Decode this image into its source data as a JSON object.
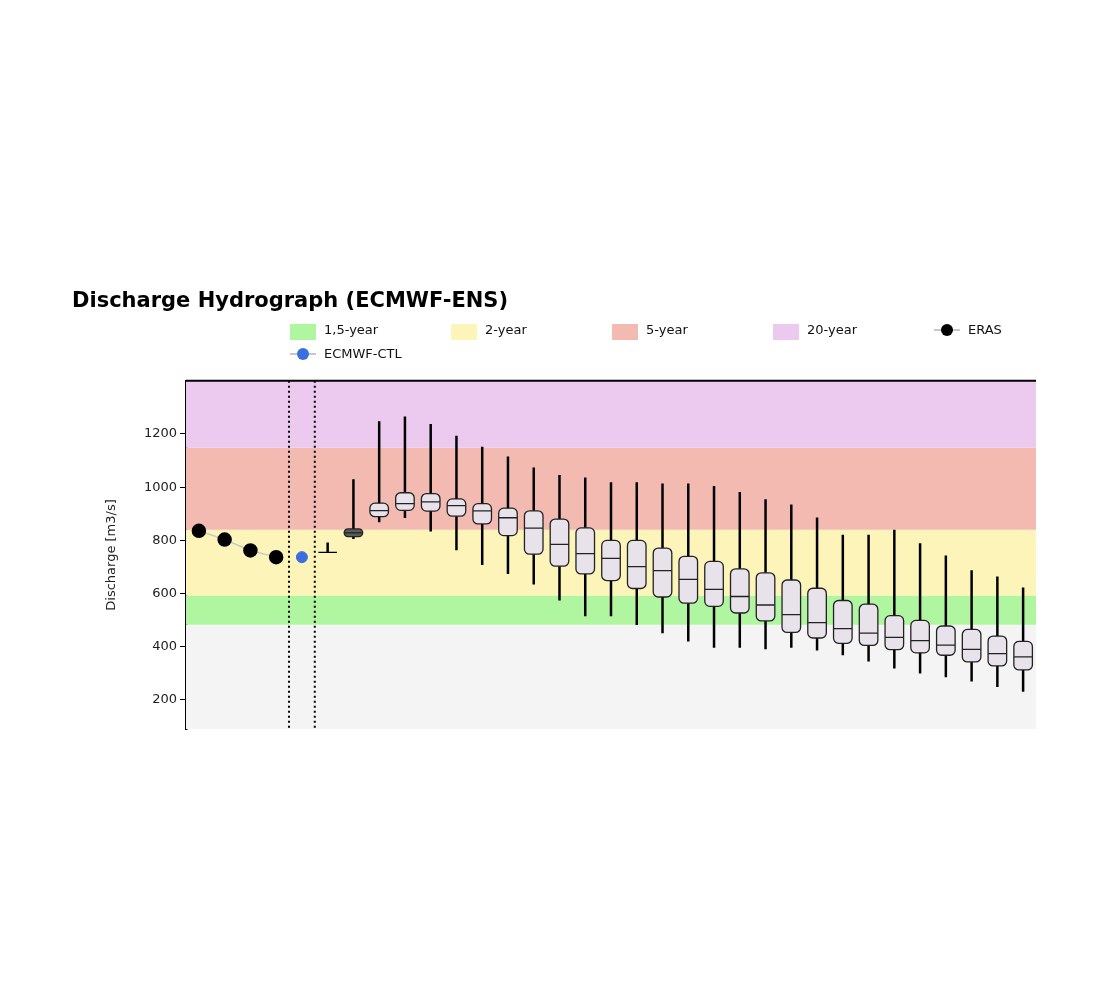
{
  "chart_data": {
    "type": "box",
    "title": "Discharge Hydrograph (ECMWF-ENS)",
    "ylabel": "Discharge [m3/s]",
    "categories": [
      null,
      null,
      null,
      null,
      null,
      null,
      null,
      null,
      null,
      null,
      null,
      null,
      null,
      null,
      null,
      null,
      null,
      null,
      null,
      null,
      null,
      null,
      null,
      null,
      null,
      null,
      null,
      null,
      null,
      null,
      null,
      null,
      null
    ],
    "ylim": [
      90,
      1400
    ],
    "yticks": [
      200,
      400,
      600,
      800,
      1000,
      1200
    ],
    "tick_labels": "y",
    "legend": "top",
    "bands": [
      {
        "axis": "y",
        "from": 90,
        "to": 483,
        "color": "#f4f4f4"
      },
      {
        "axis": "y",
        "from": 483,
        "to": 593,
        "label": "1,5-year",
        "color": "#b0f5a0"
      },
      {
        "axis": "y",
        "from": 593,
        "to": 840,
        "label": "2-year",
        "color": "#fcf4b8"
      },
      {
        "axis": "y",
        "from": 840,
        "to": 1148,
        "label": "5-year",
        "color": "#f3bab2"
      },
      {
        "axis": "y",
        "from": 1148,
        "to": 1400,
        "label": "20-year",
        "color": "#eccaf0"
      }
    ],
    "series": [
      {
        "name": "ERAS",
        "type": "line",
        "color": "#000000",
        "marker": "circle",
        "values": [
          836,
          803,
          762,
          737,
          null,
          null,
          null,
          null,
          null,
          null,
          null,
          null,
          null,
          null,
          null,
          null,
          null,
          null,
          null,
          null,
          null,
          null,
          null,
          null,
          null,
          null,
          null,
          null,
          null,
          null,
          null,
          null,
          null
        ]
      },
      {
        "name": "ECMWF-CTL",
        "type": "scatter",
        "color": "#3b6fe0",
        "marker": "circle",
        "values": [
          null,
          null,
          null,
          null,
          737,
          null,
          null,
          null,
          null,
          null,
          null,
          null,
          null,
          null,
          null,
          null,
          null,
          null,
          null,
          null,
          null,
          null,
          null,
          null,
          null,
          null,
          null,
          null,
          null,
          null,
          null,
          null,
          null
        ]
      },
      {
        "type": "box",
        "colors": [
          null,
          null,
          null,
          null,
          null,
          "#000000",
          "#5a5a5a",
          "#e8e2ea",
          "#e8e2ea",
          "#e8e2ea",
          "#e8e2ea",
          "#e8e2ea",
          "#e8e2ea",
          "#e8e2ea",
          "#e8e2ea",
          "#e8e2ea",
          "#e8e2ea",
          "#e8e2ea",
          "#e8e2ea",
          "#e8e2ea",
          "#e8e2ea",
          "#e8e2ea",
          "#e8e2ea",
          "#e8e2ea",
          "#e8e2ea",
          "#e8e2ea",
          "#e8e2ea",
          "#e8e2ea",
          "#e8e2ea",
          "#e8e2ea",
          "#e8e2ea",
          "#e8e2ea",
          "#e8e2ea"
        ],
        "boxes": [
          null,
          null,
          null,
          null,
          null,
          {
            "low": 755,
            "q1": 755,
            "median": 755,
            "q3": 755,
            "high": 792
          },
          {
            "low": 805,
            "q1": 814,
            "median": 828,
            "q3": 843,
            "high": 1030
          },
          {
            "low": 868,
            "q1": 889,
            "median": 912,
            "q3": 940,
            "high": 1248
          },
          {
            "low": 884,
            "q1": 913,
            "median": 938,
            "q3": 979,
            "high": 1266
          },
          {
            "low": 833,
            "q1": 910,
            "median": 945,
            "q3": 976,
            "high": 1238
          },
          {
            "low": 763,
            "q1": 891,
            "median": 931,
            "q3": 956,
            "high": 1193
          },
          {
            "low": 707,
            "q1": 862,
            "median": 911,
            "q3": 938,
            "high": 1152
          },
          {
            "low": 674,
            "q1": 818,
            "median": 885,
            "q3": 921,
            "high": 1115
          },
          {
            "low": 634,
            "q1": 748,
            "median": 846,
            "q3": 911,
            "high": 1074
          },
          {
            "low": 574,
            "q1": 703,
            "median": 785,
            "q3": 880,
            "high": 1046
          },
          {
            "low": 515,
            "q1": 674,
            "median": 750,
            "q3": 847,
            "high": 1036
          },
          {
            "low": 515,
            "q1": 649,
            "median": 732,
            "q3": 800,
            "high": 1019
          },
          {
            "low": 482,
            "q1": 619,
            "median": 701,
            "q3": 800,
            "high": 1019
          },
          {
            "low": 451,
            "q1": 587,
            "median": 686,
            "q3": 771,
            "high": 1014
          },
          {
            "low": 420,
            "q1": 564,
            "median": 653,
            "q3": 740,
            "high": 1014
          },
          {
            "low": 396,
            "q1": 552,
            "median": 616,
            "q3": 721,
            "high": 1004
          },
          {
            "low": 396,
            "q1": 527,
            "median": 589,
            "q3": 693,
            "high": 982
          },
          {
            "low": 391,
            "q1": 497,
            "median": 557,
            "q3": 678,
            "high": 955
          },
          {
            "low": 396,
            "q1": 454,
            "median": 521,
            "q3": 651,
            "high": 935
          },
          {
            "low": 386,
            "q1": 433,
            "median": 491,
            "q3": 620,
            "high": 886
          },
          {
            "low": 368,
            "q1": 413,
            "median": 468,
            "q3": 574,
            "high": 821
          },
          {
            "low": 345,
            "q1": 405,
            "median": 451,
            "q3": 560,
            "high": 821
          },
          {
            "low": 318,
            "q1": 389,
            "median": 435,
            "q3": 517,
            "high": 840
          },
          {
            "low": 299,
            "q1": 377,
            "median": 423,
            "q3": 499,
            "high": 789
          },
          {
            "low": 285,
            "q1": 368,
            "median": 406,
            "q3": 478,
            "high": 743
          },
          {
            "low": 269,
            "q1": 343,
            "median": 390,
            "q3": 465,
            "high": 688
          },
          {
            "low": 249,
            "q1": 328,
            "median": 374,
            "q3": 440,
            "high": 664
          },
          {
            "low": 231,
            "q1": 313,
            "median": 362,
            "q3": 420,
            "high": 623
          }
        ]
      }
    ]
  }
}
